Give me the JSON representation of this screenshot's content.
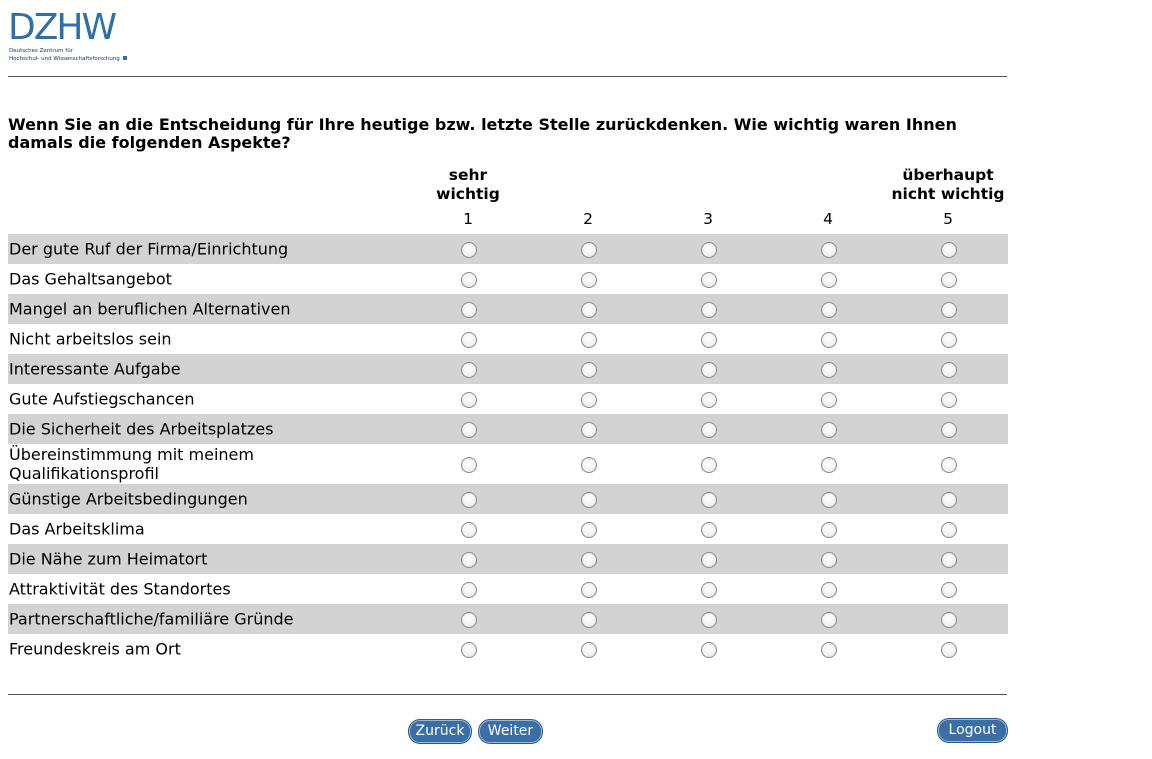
{
  "logo": {
    "word": "DZHW",
    "line1": "Deutsches Zentrum für",
    "line2": "Hochschul- und Wissenschaftsforschung"
  },
  "question": "Wenn Sie an die Entscheidung für Ihre heutige bzw. letzte Stelle zurückdenken. Wie wichtig waren Ihnen damals die folgenden Aspekte?",
  "scale": {
    "high_label_1": "sehr",
    "high_label_2": "wichtig",
    "low_label_1": "überhaupt",
    "low_label_2": "nicht wichtig",
    "numbers": [
      "1",
      "2",
      "3",
      "4",
      "5"
    ]
  },
  "items": [
    {
      "label": "Der gute Ruf der Firma/Einrichtung",
      "selected": null
    },
    {
      "label": "Das Gehaltsangebot",
      "selected": null
    },
    {
      "label": "Mangel an beruflichen Alternativen",
      "selected": null
    },
    {
      "label": "Nicht arbeitslos sein",
      "selected": null
    },
    {
      "label": "Interessante Aufgabe",
      "selected": null
    },
    {
      "label": "Gute Aufstiegschancen",
      "selected": null
    },
    {
      "label": "Die Sicherheit des Arbeitsplatzes",
      "selected": null
    },
    {
      "label": "Übereinstimmung mit meinem Qualifikationsprofil",
      "selected": null
    },
    {
      "label": "Günstige Arbeitsbedingungen",
      "selected": null
    },
    {
      "label": "Das Arbeitsklima",
      "selected": null
    },
    {
      "label": "Die Nähe zum Heimatort",
      "selected": null
    },
    {
      "label": "Attraktivität des Standortes",
      "selected": null
    },
    {
      "label": "Partnerschaftliche/familiäre Gründe",
      "selected": null
    },
    {
      "label": "Freundeskreis am Ort",
      "selected": null
    }
  ],
  "nav": {
    "back": "Zurück",
    "next": "Weiter",
    "logout": "Logout"
  },
  "colors": {
    "brand": "#2f6fa7",
    "row_shade": "#d3d3d3",
    "button": "#3a6ea5"
  }
}
